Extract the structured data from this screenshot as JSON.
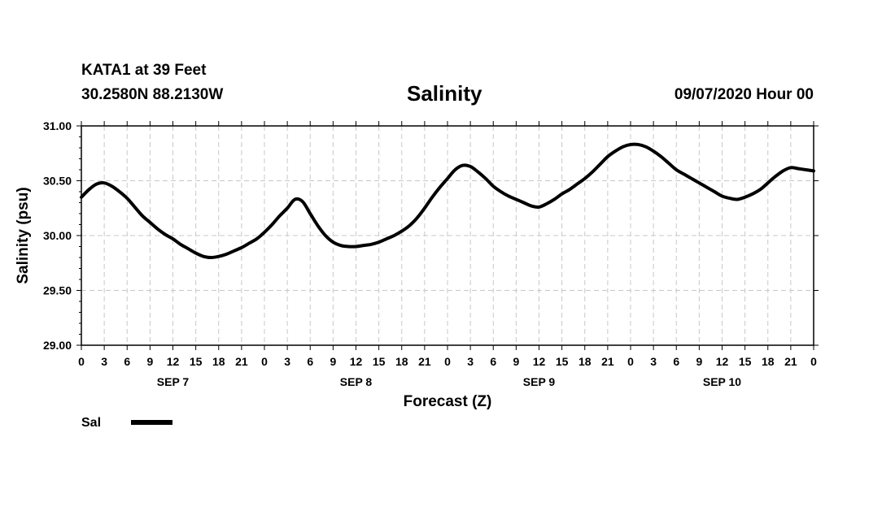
{
  "header": {
    "station": "KATA1 at 39 Feet",
    "coords": "30.2580N 88.2130W",
    "title": "Salinity",
    "issued": "09/07/2020 Hour 00"
  },
  "chart_data": {
    "type": "line",
    "title": "Salinity",
    "xlabel": "Forecast (Z)",
    "ylabel": "Salinity (psu)",
    "ylim": [
      29.0,
      31.0
    ],
    "yticks": [
      "29.00",
      "29.50",
      "30.00",
      "30.50",
      "31.00"
    ],
    "x_unit": "hours since 09/07/2020 00Z",
    "xlim": [
      0,
      96
    ],
    "hour_ticks": [
      "0",
      "3",
      "6",
      "9",
      "12",
      "15",
      "18",
      "21",
      "0",
      "3",
      "6",
      "9",
      "12",
      "15",
      "18",
      "21",
      "0",
      "3",
      "6",
      "9",
      "12",
      "15",
      "18",
      "21",
      "0",
      "3",
      "6",
      "9",
      "12",
      "15",
      "18",
      "21",
      "0"
    ],
    "day_labels": [
      "SEP 7",
      "SEP 8",
      "SEP 9",
      "SEP 10"
    ],
    "grid": true,
    "legend": {
      "placement": "bottom-left",
      "entries": [
        "Sal"
      ]
    },
    "series": [
      {
        "name": "Sal",
        "color": "#000000",
        "x": [
          0,
          1,
          2,
          3,
          4,
          5,
          6,
          7,
          8,
          9,
          10,
          11,
          12,
          13,
          14,
          15,
          16,
          17,
          18,
          19,
          20,
          21,
          22,
          23,
          24,
          25,
          26,
          27,
          28,
          29,
          30,
          31,
          32,
          33,
          34,
          35,
          36,
          37,
          38,
          39,
          40,
          41,
          42,
          43,
          44,
          45,
          46,
          47,
          48,
          49,
          50,
          51,
          52,
          53,
          54,
          55,
          56,
          57,
          58,
          59,
          60,
          61,
          62,
          63,
          64,
          65,
          66,
          67,
          68,
          69,
          70,
          71,
          72,
          73,
          74,
          75,
          76,
          77,
          78,
          79,
          80,
          81,
          82,
          83,
          84,
          85,
          86,
          87,
          88,
          89,
          90,
          91,
          92,
          93,
          94,
          95,
          96
        ],
        "values": [
          30.35,
          30.42,
          30.47,
          30.48,
          30.45,
          30.4,
          30.34,
          30.26,
          30.18,
          30.12,
          30.06,
          30.01,
          29.97,
          29.92,
          29.88,
          29.84,
          29.81,
          29.8,
          29.81,
          29.83,
          29.86,
          29.89,
          29.93,
          29.97,
          30.03,
          30.1,
          30.18,
          30.25,
          30.33,
          30.31,
          30.2,
          30.09,
          30.0,
          29.94,
          29.91,
          29.9,
          29.9,
          29.91,
          29.92,
          29.94,
          29.97,
          30.0,
          30.04,
          30.09,
          30.16,
          30.25,
          30.35,
          30.44,
          30.52,
          30.6,
          30.64,
          30.63,
          30.58,
          30.52,
          30.45,
          30.4,
          30.36,
          30.33,
          30.3,
          30.27,
          30.26,
          30.29,
          30.33,
          30.38,
          30.42,
          30.47,
          30.52,
          30.58,
          30.65,
          30.72,
          30.77,
          30.81,
          30.83,
          30.83,
          30.81,
          30.77,
          30.72,
          30.66,
          30.6,
          30.56,
          30.52,
          30.48,
          30.44,
          30.4,
          30.36,
          30.34,
          30.33,
          30.35,
          30.38,
          30.42,
          30.48,
          30.54,
          30.59,
          30.62,
          30.61,
          30.6,
          30.59
        ]
      }
    ]
  }
}
